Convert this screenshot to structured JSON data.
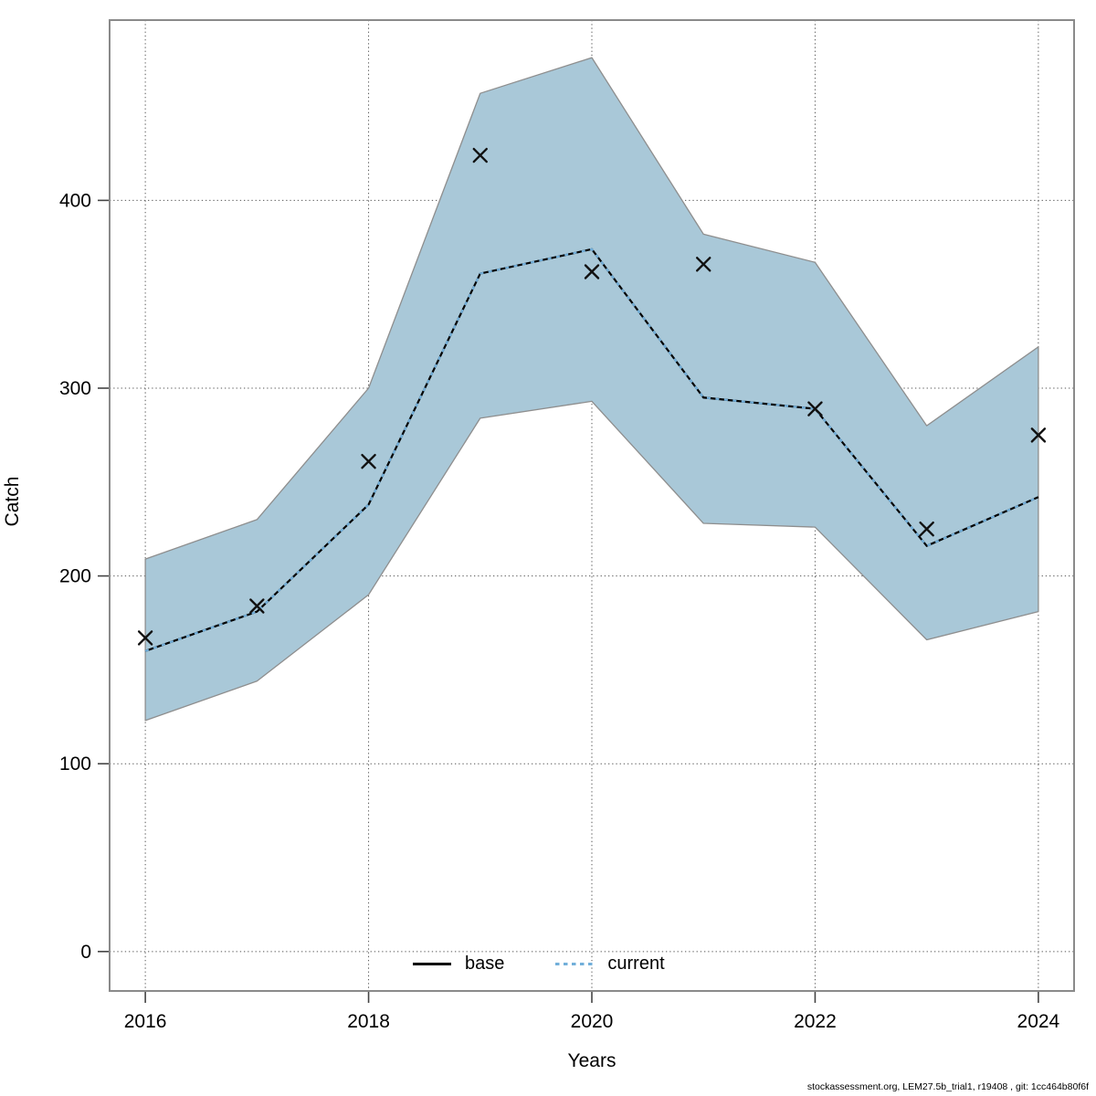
{
  "page": {
    "background": "#ffffff"
  },
  "footer": {
    "text": "stockassessment.org, LEM27.5b_trial1, r19408 , git: 1cc464b80f6f"
  },
  "chart_data": {
    "type": "line",
    "title": "",
    "xlabel": "Years",
    "ylabel": "Catch",
    "x": [
      2016,
      2017,
      2018,
      2019,
      2020,
      2021,
      2022,
      2023,
      2024
    ],
    "series": [
      {
        "name": "base",
        "style": "solid-line",
        "values": [
          160,
          181,
          238,
          361,
          374,
          295,
          289,
          216,
          242
        ]
      },
      {
        "name": "current",
        "style": "dotted-line",
        "values": [
          160,
          181,
          238,
          361,
          374,
          295,
          289,
          216,
          242
        ]
      },
      {
        "name": "observations",
        "style": "x-markers",
        "values": [
          167,
          184,
          261,
          424,
          362,
          366,
          289,
          225,
          275
        ]
      }
    ],
    "band": {
      "name": "confidence-band",
      "lower": [
        123,
        144,
        190,
        284,
        293,
        228,
        226,
        166,
        181
      ],
      "upper": [
        209,
        230,
        300,
        457,
        476,
        382,
        367,
        280,
        322
      ]
    },
    "x_ticks": [
      2016,
      2018,
      2020,
      2022,
      2024
    ],
    "y_ticks": [
      0,
      100,
      200,
      300,
      400
    ],
    "xlim": [
      2015.68,
      2024.32
    ],
    "ylim": [
      -21,
      496
    ],
    "grid": "dotted",
    "legend_position": "bottom-center-inside",
    "legend": [
      {
        "label": "base",
        "line": "solid-black"
      },
      {
        "label": "current",
        "line": "dotted-blue"
      }
    ],
    "colors": {
      "band_fill": "#a9c8d8",
      "band_edge": "#8e8e8e",
      "base_line": "#000000",
      "current_line": "#72afda",
      "marker": "#111111",
      "grid": "#555555",
      "box_border": "#8a8a8a",
      "tick": "#444444",
      "text": "#000000"
    }
  }
}
